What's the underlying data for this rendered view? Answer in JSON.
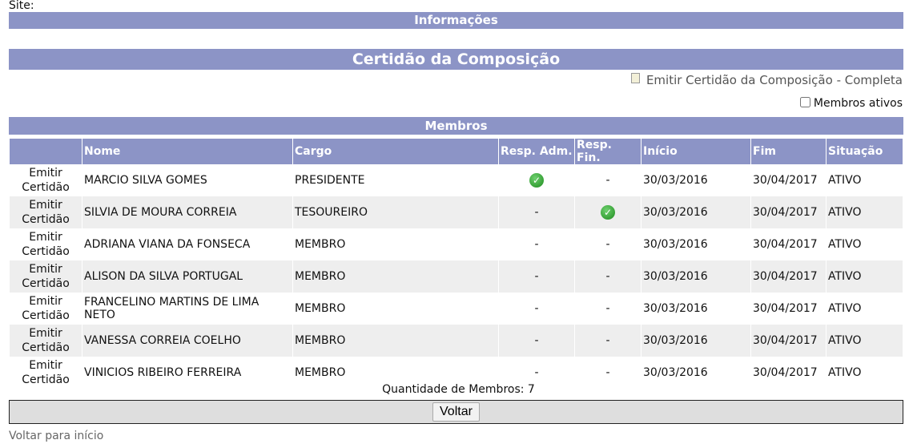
{
  "site_label": "Site:",
  "info_title": "Informações",
  "cert_title": "Certidão da Composição",
  "emit_full_link": "Emitir Certidão da Composição - Completa",
  "active_members_label": "Membros ativos",
  "active_members_checked": false,
  "members_title": "Membros",
  "columns": [
    "",
    "Nome",
    "Cargo",
    "Resp. Adm.",
    "Resp. Fin.",
    "Início",
    "Fim",
    "Situação"
  ],
  "emit_label": "Emitir Certidão",
  "rows": [
    {
      "nome": "MARCIO SILVA GOMES",
      "cargo": "PRESIDENTE",
      "adm": true,
      "fin": false,
      "inicio": "30/03/2016",
      "fim": "30/04/2017",
      "situacao": "ATIVO"
    },
    {
      "nome": "SILVIA DE MOURA CORREIA",
      "cargo": "TESOUREIRO",
      "adm": false,
      "fin": true,
      "inicio": "30/03/2016",
      "fim": "30/04/2017",
      "situacao": "ATIVO"
    },
    {
      "nome": "ADRIANA VIANA DA FONSECA",
      "cargo": "MEMBRO",
      "adm": false,
      "fin": false,
      "inicio": "30/03/2016",
      "fim": "30/04/2017",
      "situacao": "ATIVO"
    },
    {
      "nome": "ALISON DA SILVA PORTUGAL",
      "cargo": "MEMBRO",
      "adm": false,
      "fin": false,
      "inicio": "30/03/2016",
      "fim": "30/04/2017",
      "situacao": "ATIVO"
    },
    {
      "nome": "FRANCELINO MARTINS DE LIMA NETO",
      "cargo": "MEMBRO",
      "adm": false,
      "fin": false,
      "inicio": "30/03/2016",
      "fim": "30/04/2017",
      "situacao": "ATIVO"
    },
    {
      "nome": "VANESSA CORREIA COELHO",
      "cargo": "MEMBRO",
      "adm": false,
      "fin": false,
      "inicio": "30/03/2016",
      "fim": "30/04/2017",
      "situacao": "ATIVO"
    },
    {
      "nome": "VINICIOS RIBEIRO FERREIRA",
      "cargo": "MEMBRO",
      "adm": false,
      "fin": false,
      "inicio": "30/03/2016",
      "fim": "30/04/2017",
      "situacao": "ATIVO"
    }
  ],
  "dash": "-",
  "count_label": "Quantidade de Membros: 7",
  "back_button": "Voltar",
  "home_link": "Voltar para início",
  "colors": {
    "header_bar": "#8c94c6",
    "alt_row": "#eeeeee",
    "check": "#2a9a2a"
  }
}
